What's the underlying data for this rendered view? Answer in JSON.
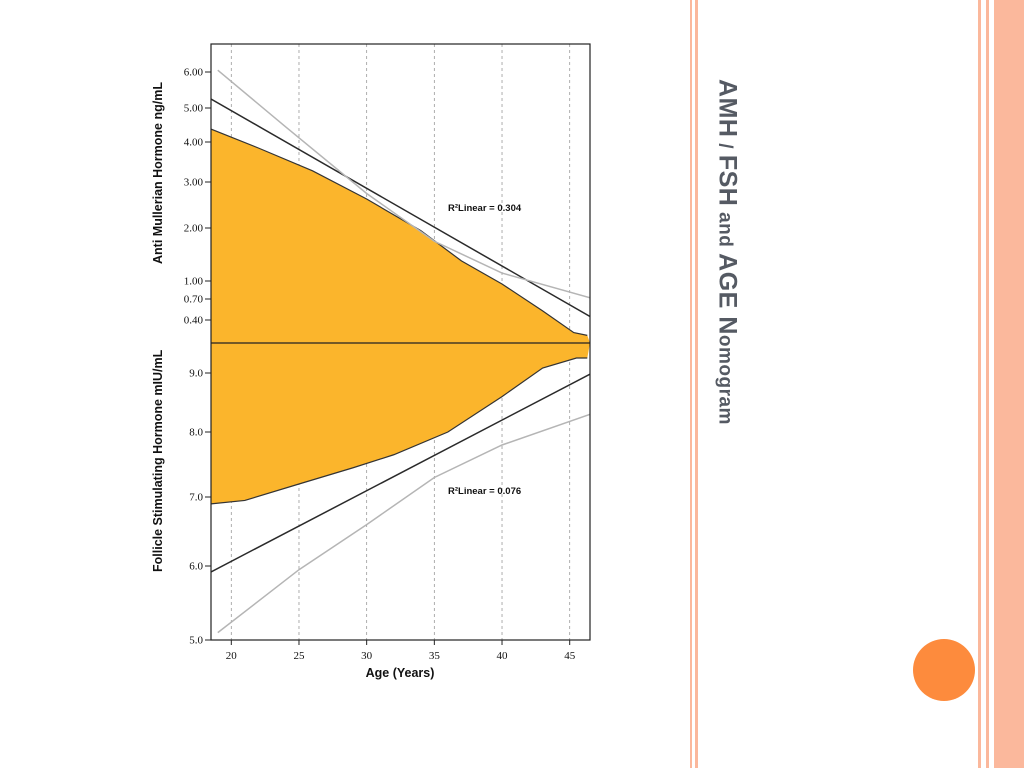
{
  "slide": {
    "title_parts": [
      "AMH",
      " / ",
      "FSH",
      " and ",
      "AGE",
      " N",
      "omogram"
    ],
    "accent_color": "#fd8b3d",
    "stripe_color": "#fbb89c"
  },
  "chart_data": [
    {
      "type": "area",
      "panel": "top",
      "ylabel": "Anti Mullerian Hormone ng/mL",
      "xlabel": "Age (Years)",
      "yticks": [
        "6.00",
        "5.00",
        "4.00",
        "3.00",
        "2.00",
        "1.00",
        "0.70",
        "0.40"
      ],
      "ytick_values": [
        6.0,
        5.0,
        4.0,
        3.0,
        2.0,
        1.0,
        0.7,
        0.4
      ],
      "xticks": [
        "20",
        "25",
        "30",
        "35",
        "40",
        "45"
      ],
      "xtick_values": [
        20,
        25,
        30,
        35,
        40,
        45
      ],
      "xlim": [
        18.5,
        46.5
      ],
      "annotation": "R²Linear = 0.304",
      "fill_color": "#fbb52c",
      "series": [
        {
          "role": "band",
          "x": [
            18.5,
            22,
            26,
            30,
            34,
            37,
            40,
            43,
            45.3,
            46.3
          ],
          "y": [
            4.38,
            3.85,
            3.28,
            2.63,
            1.95,
            1.38,
            0.95,
            0.53,
            0.22,
            0.18
          ]
        },
        {
          "role": "fit",
          "x": [
            18.5,
            46.5
          ],
          "y": [
            5.25,
            0.45
          ]
        },
        {
          "role": "ci",
          "x": [
            19,
            24,
            30,
            35,
            40,
            46.5
          ],
          "y": [
            6.05,
            4.45,
            2.75,
            1.75,
            1.15,
            0.72
          ]
        }
      ]
    },
    {
      "type": "area",
      "panel": "bottom",
      "ylabel": "Follicle Stimulating Hormone mIU/mL",
      "xlabel": "Age (Years)",
      "yticks": [
        "9.0",
        "8.0",
        "7.0",
        "6.0",
        "5.0"
      ],
      "ytick_values": [
        9.0,
        8.0,
        7.0,
        6.0,
        5.0
      ],
      "xticks": [
        "20",
        "25",
        "30",
        "35",
        "40",
        "45"
      ],
      "xtick_values": [
        20,
        25,
        30,
        35,
        40,
        45
      ],
      "xlim": [
        18.5,
        46.5
      ],
      "annotation": "R²Linear = 0.076",
      "fill_color": "#fbb52c",
      "series": [
        {
          "role": "band",
          "x": [
            18.5,
            21,
            25,
            29,
            32,
            36,
            40,
            43,
            45.5,
            46.3
          ],
          "y": [
            6.9,
            6.95,
            7.2,
            7.45,
            7.65,
            8.0,
            8.6,
            9.1,
            9.3,
            9.3
          ]
        },
        {
          "role": "fit",
          "x": [
            18.5,
            46.5
          ],
          "y": [
            5.92,
            8.98
          ]
        },
        {
          "role": "ci",
          "x": [
            19,
            25,
            30,
            35,
            40,
            46.5
          ],
          "y": [
            5.1,
            5.95,
            6.6,
            7.3,
            7.8,
            8.3
          ]
        }
      ]
    }
  ]
}
